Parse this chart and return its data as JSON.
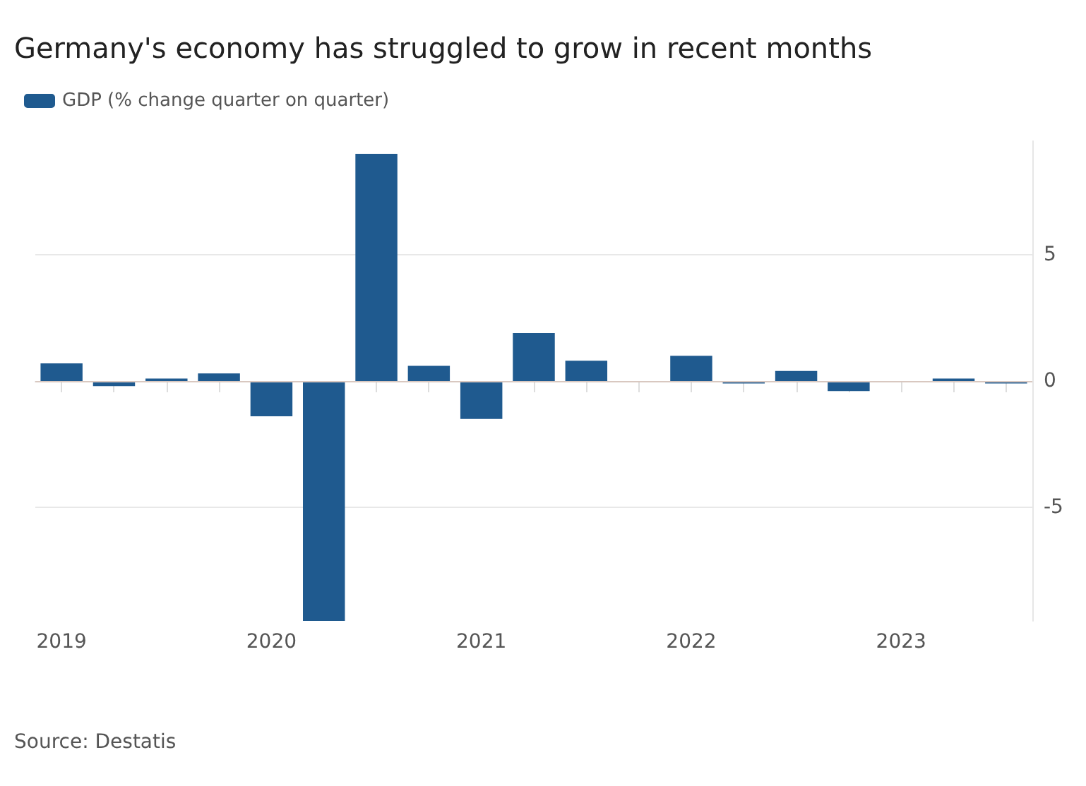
{
  "chart_data": {
    "type": "bar",
    "title": "Germany's economy has struggled to grow in recent months",
    "categories": [
      "2019",
      null,
      null,
      null,
      "2020",
      null,
      null,
      null,
      "2021",
      null,
      null,
      null,
      "2022",
      null,
      null,
      null,
      "2023",
      null,
      null
    ],
    "series": [
      {
        "name": "GDP (% change quarter on quarter)",
        "color": "#1f5a8f",
        "values": [
          0.7,
          -0.2,
          0.1,
          0.3,
          -1.4,
          -9.5,
          9.0,
          0.6,
          -1.5,
          1.9,
          0.8,
          0,
          1.0,
          -0.1,
          0.4,
          -0.4,
          0,
          0.1,
          -0.1
        ]
      }
    ],
    "ylim": [
      -9.5,
      9.5
    ],
    "yticks": [
      -5,
      0,
      5
    ],
    "grid": "y",
    "legend": "top left",
    "annotations": [
      "Source: Destatis"
    ]
  }
}
